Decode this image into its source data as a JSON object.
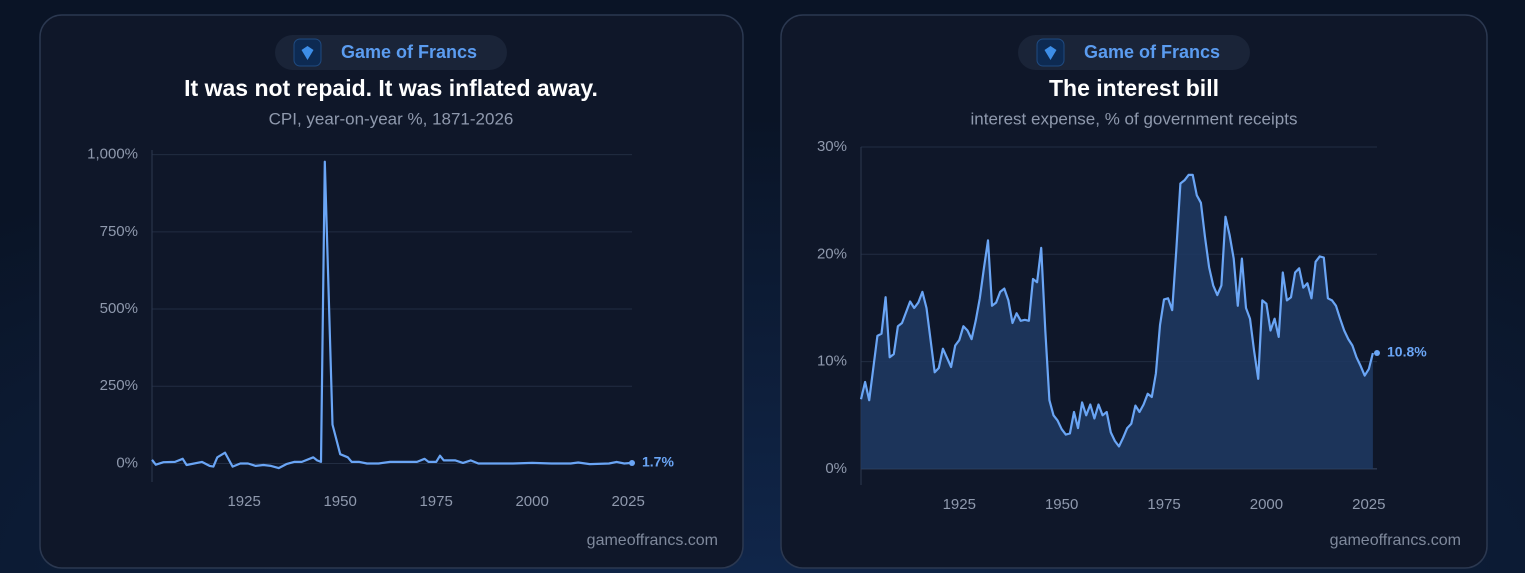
{
  "chart_data": [
    {
      "type": "line",
      "brand": "Game of Francs",
      "title": "It was not repaid. It was inflated away.",
      "subtitle": "CPI, year-on-year %, 1871-2026",
      "source": "gameoffrancs.com",
      "x": [
        1901,
        1902,
        1904,
        1907,
        1909,
        1910,
        1914,
        1916,
        1917,
        1918,
        1920,
        1922,
        1924,
        1926,
        1928,
        1930,
        1932,
        1934,
        1936,
        1938,
        1940,
        1943,
        1944,
        1945,
        1946,
        1948,
        1950,
        1952,
        1953,
        1955,
        1957,
        1960,
        1963,
        1967,
        1970,
        1972,
        1973,
        1975,
        1976,
        1977,
        1980,
        1982,
        1984,
        1986,
        1990,
        1995,
        2000,
        2005,
        2010,
        2012,
        2015,
        2020,
        2022,
        2024,
        2026
      ],
      "series": [
        {
          "color": "#6aa5f5",
          "values": [
            12,
            -4,
            4,
            5,
            15,
            -5,
            5,
            -8,
            -10,
            20,
            35,
            -10,
            0,
            0,
            -8,
            -5,
            -8,
            -15,
            -2,
            5,
            5,
            20,
            10,
            5,
            977,
            126,
            30,
            20,
            5,
            5,
            0,
            0,
            5,
            5,
            5,
            15,
            5,
            5,
            25,
            10,
            10,
            2,
            10,
            0,
            0,
            0,
            2,
            0,
            0,
            3,
            -2,
            0,
            5,
            0,
            1.7
          ],
          "value_labels": [
            null,
            null,
            null,
            null,
            null,
            null,
            null,
            null,
            null,
            null,
            null,
            null,
            null,
            null,
            null,
            null,
            null,
            null,
            null,
            null,
            null,
            null,
            null,
            null,
            null,
            null,
            null,
            null,
            null,
            null,
            null,
            null,
            null,
            null,
            null,
            null,
            null,
            null,
            null,
            null,
            null,
            null,
            null,
            null,
            null,
            null,
            null,
            null,
            null,
            null,
            null,
            null,
            null,
            null,
            "1.7%"
          ]
        }
      ],
      "xlim": [
        1901,
        2026
      ],
      "xticks": [
        1925,
        1950,
        1975,
        2000,
        2025
      ],
      "ylim": [
        -60,
        1015
      ],
      "yticks": [
        {
          "value": 0,
          "label": "0%"
        },
        {
          "value": 250,
          "label": "250%"
        },
        {
          "value": 500,
          "label": "500%"
        },
        {
          "value": 750,
          "label": "750%"
        },
        {
          "value": 1000,
          "label": "1,000%"
        }
      ],
      "grid": true
    },
    {
      "type": "area",
      "brand": "Game of Francs",
      "title": "The interest bill",
      "subtitle": "interest expense, % of government receipts",
      "source": "gameoffrancs.com",
      "x": [
        1901,
        1902,
        1903,
        1905,
        1906,
        1907,
        1908,
        1909,
        1910,
        1911,
        1913,
        1914,
        1915,
        1916,
        1917,
        1919,
        1920,
        1921,
        1923,
        1924,
        1925,
        1926,
        1927,
        1928,
        1929,
        1930,
        1931,
        1932,
        1933,
        1934,
        1935,
        1936,
        1937,
        1938,
        1939,
        1940,
        1941,
        1942,
        1943,
        1944,
        1945,
        1946,
        1947,
        1948,
        1949,
        1950,
        1951,
        1952,
        1953,
        1954,
        1955,
        1956,
        1957,
        1958,
        1959,
        1960,
        1961,
        1962,
        1963,
        1964,
        1965,
        1966,
        1967,
        1968,
        1969,
        1970,
        1971,
        1972,
        1973,
        1974,
        1975,
        1976,
        1977,
        1978,
        1979,
        1980,
        1981,
        1982,
        1983,
        1984,
        1985,
        1986,
        1987,
        1988,
        1989,
        1990,
        1991,
        1992,
        1993,
        1994,
        1995,
        1996,
        1997,
        1998,
        1999,
        2000,
        2001,
        2002,
        2003,
        2004,
        2005,
        2006,
        2007,
        2008,
        2009,
        2010,
        2011,
        2012,
        2013,
        2014,
        2015,
        2016,
        2017,
        2018,
        2019,
        2020,
        2021,
        2022,
        2023,
        2024,
        2025,
        2026
      ],
      "series": [
        {
          "color": "#6aa5f5",
          "values": [
            6.5,
            8.1,
            6.4,
            12.4,
            12.6,
            16.0,
            10.4,
            10.7,
            13.3,
            13.6,
            15.6,
            15.0,
            15.5,
            16.5,
            15.0,
            9.0,
            9.4,
            11.2,
            9.5,
            11.5,
            12.0,
            13.3,
            12.9,
            12.1,
            13.8,
            15.9,
            18.7,
            21.3,
            15.2,
            15.5,
            16.5,
            16.8,
            15.7,
            13.6,
            14.5,
            13.8,
            13.9,
            13.8,
            17.7,
            17.4,
            20.6,
            12.9,
            6.4,
            5.0,
            4.5,
            3.7,
            3.2,
            3.3,
            5.3,
            3.8,
            6.2,
            5.0,
            6.0,
            4.7,
            6.0,
            5.0,
            5.3,
            3.4,
            2.6,
            2.1,
            2.9,
            3.8,
            4.2,
            5.9,
            5.3,
            6.0,
            7.0,
            6.7,
            8.9,
            13.4,
            15.8,
            15.9,
            14.8,
            20.4,
            26.6,
            26.9,
            27.4,
            27.4,
            25.5,
            24.8,
            21.6,
            18.8,
            17.1,
            16.2,
            17.1,
            23.5,
            21.8,
            19.6,
            15.2,
            19.6,
            15.0,
            14.0,
            11.0,
            8.4,
            15.7,
            15.4,
            12.9,
            14.0,
            12.3,
            18.3,
            15.7,
            16.0,
            18.3,
            18.7,
            16.9,
            17.3,
            15.9,
            19.3,
            19.8,
            19.7,
            15.9,
            15.7,
            15.2,
            14.0,
            12.9,
            12.1,
            11.5,
            10.4,
            9.6,
            8.7,
            9.3,
            10.8
          ],
          "value_labels": [
            null,
            null,
            null,
            null,
            null,
            null,
            null,
            null,
            null,
            null,
            null,
            null,
            null,
            null,
            null,
            null,
            null,
            null,
            null,
            null,
            null,
            null,
            null,
            null,
            null,
            null,
            null,
            null,
            null,
            null,
            null,
            null,
            null,
            null,
            null,
            null,
            null,
            null,
            null,
            null,
            null,
            null,
            null,
            null,
            null,
            null,
            null,
            null,
            null,
            null,
            null,
            null,
            null,
            null,
            null,
            null,
            null,
            null,
            null,
            null,
            null,
            null,
            null,
            null,
            null,
            null,
            null,
            null,
            null,
            null,
            null,
            null,
            null,
            null,
            null,
            null,
            null,
            null,
            null,
            null,
            null,
            null,
            null,
            null,
            null,
            null,
            null,
            null,
            null,
            null,
            null,
            null,
            null,
            null,
            null,
            null,
            null,
            null,
            null,
            null,
            null,
            null,
            null,
            null,
            null,
            null,
            null,
            null,
            null,
            null,
            null,
            null,
            null,
            null,
            null,
            null,
            null,
            null,
            null,
            null,
            null,
            "10.8%"
          ]
        }
      ],
      "xlim": [
        1901,
        2027
      ],
      "xticks": [
        1925,
        1950,
        1975,
        2000,
        2025
      ],
      "ylim": [
        -1.5,
        30
      ],
      "yticks": [
        {
          "value": 0,
          "label": "0%"
        },
        {
          "value": 10,
          "label": "10%"
        },
        {
          "value": 20,
          "label": "20%"
        },
        {
          "value": 30,
          "label": "30%"
        }
      ],
      "grid": true
    }
  ]
}
